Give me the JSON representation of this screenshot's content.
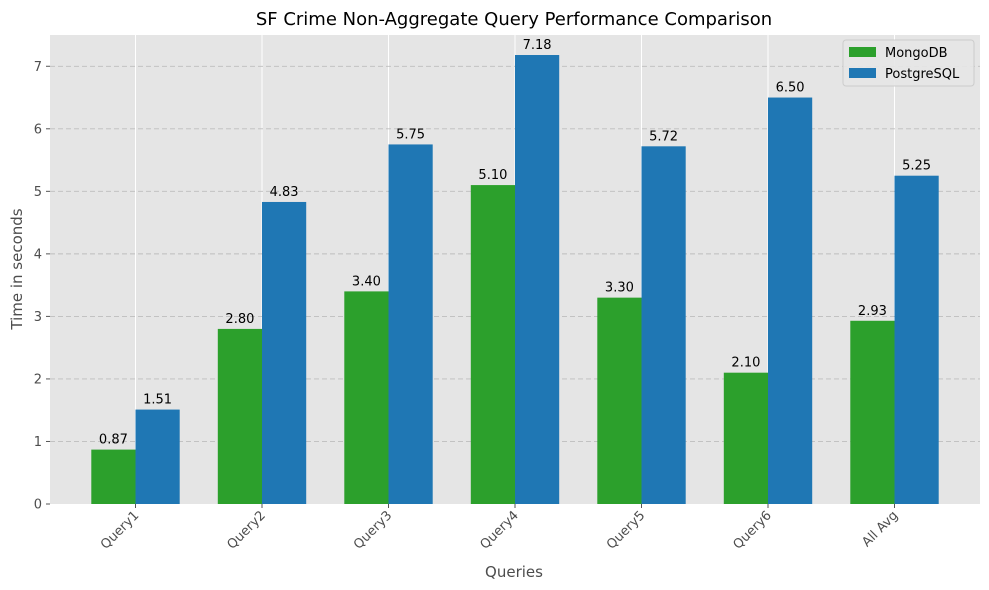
{
  "chart_data": {
    "type": "bar",
    "title": "SF Crime Non-Aggregate Query Performance Comparison",
    "xlabel": "Queries",
    "ylabel": "Time in seconds",
    "categories": [
      "Query1",
      "Query2",
      "Query3",
      "Query4",
      "Query5",
      "Query6",
      "All Avg"
    ],
    "series": [
      {
        "name": "MongoDB",
        "color": "#2ca02c",
        "values": [
          0.87,
          2.8,
          3.4,
          5.1,
          3.3,
          2.1,
          2.93
        ]
      },
      {
        "name": "PostgreSQL",
        "color": "#1f77b4",
        "values": [
          1.51,
          4.83,
          5.75,
          7.18,
          5.72,
          6.5,
          5.25
        ]
      }
    ],
    "ylim": [
      0,
      7.5
    ],
    "yticks": [
      0,
      1,
      2,
      3,
      4,
      5,
      6,
      7
    ],
    "grid": true,
    "legend_position": "top-right",
    "tick_label_rotation": 45,
    "background": "#e5e5e5"
  }
}
